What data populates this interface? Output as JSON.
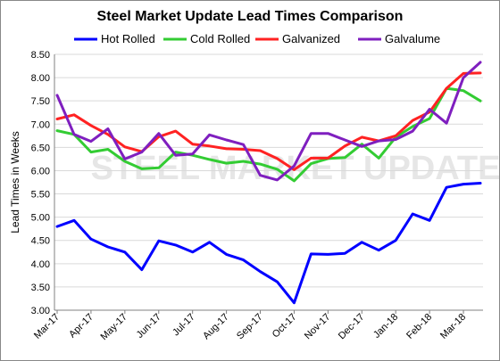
{
  "chart_data": {
    "type": "line",
    "title": "Steel Market Update Lead Times Comparison",
    "ylabel": "Lead Times in Weeks",
    "xlabel": "",
    "ylim": [
      3.0,
      8.5
    ],
    "yticks": [
      "3.00",
      "3.50",
      "4.00",
      "4.50",
      "5.00",
      "5.50",
      "6.00",
      "6.50",
      "7.00",
      "7.50",
      "8.00",
      "8.50"
    ],
    "yticks_values": [
      3.0,
      3.5,
      4.0,
      4.5,
      5.0,
      5.5,
      6.0,
      6.5,
      7.0,
      7.5,
      8.0,
      8.5
    ],
    "x_labels": [
      "Mar-17",
      "Apr-17",
      "May-17",
      "Jun-17",
      "Jul-17",
      "Aug-17",
      "Sep-17",
      "Oct-17",
      "Nov-17",
      "Dec-17",
      "Jan-18",
      "Feb-18",
      "Mar-18"
    ],
    "x_label_index": [
      0,
      2,
      4,
      6,
      8,
      10,
      12,
      14,
      16,
      18,
      20,
      22,
      24
    ],
    "n_points": 26,
    "legend_position": "top",
    "grid": "horizontal",
    "watermark": "STEEL MARKET UPDATE",
    "series": [
      {
        "name": "Hot Rolled",
        "color": "#0000ff",
        "values": [
          4.8,
          4.93,
          4.53,
          4.36,
          4.25,
          3.87,
          4.49,
          4.4,
          4.25,
          4.46,
          4.2,
          4.08,
          3.83,
          3.61,
          3.16,
          4.21,
          4.2,
          4.22,
          4.46,
          4.29,
          4.5,
          5.07,
          4.93,
          5.64,
          5.71,
          5.73
        ]
      },
      {
        "name": "Cold Rolled",
        "color": "#33cc33",
        "values": [
          6.86,
          6.78,
          6.4,
          6.46,
          6.2,
          6.04,
          6.06,
          6.4,
          6.33,
          6.24,
          6.16,
          6.2,
          6.14,
          6.03,
          5.78,
          6.15,
          6.26,
          6.28,
          6.57,
          6.27,
          6.72,
          6.95,
          7.12,
          7.77,
          7.72,
          7.5
        ]
      },
      {
        "name": "Galvanized",
        "color": "#ff2222",
        "values": [
          7.11,
          7.2,
          6.97,
          6.78,
          6.51,
          6.41,
          6.73,
          6.85,
          6.57,
          6.53,
          6.47,
          6.46,
          6.43,
          6.26,
          6.02,
          6.27,
          6.27,
          6.53,
          6.72,
          6.64,
          6.75,
          7.08,
          7.26,
          7.77,
          8.09,
          8.1
        ]
      },
      {
        "name": "Galvalume",
        "color": "#7f1fbf",
        "values": [
          7.62,
          6.78,
          6.63,
          6.9,
          6.25,
          6.4,
          6.8,
          6.33,
          6.36,
          6.77,
          6.66,
          6.56,
          5.9,
          5.8,
          6.1,
          6.8,
          6.8,
          6.66,
          6.52,
          6.64,
          6.67,
          6.85,
          7.32,
          7.02,
          8.0,
          8.33
        ]
      }
    ]
  }
}
